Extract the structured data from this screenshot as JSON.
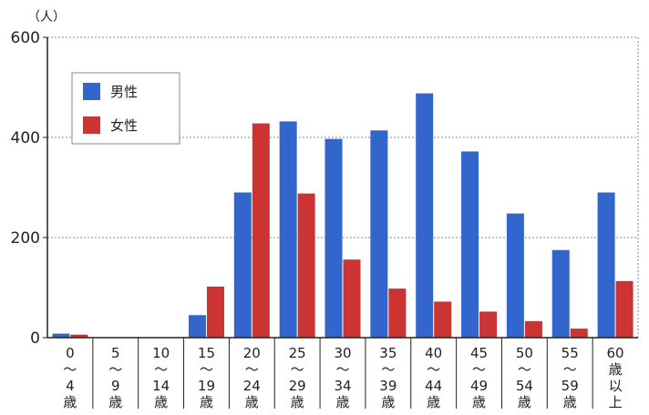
{
  "chart_data": {
    "type": "bar",
    "unit_label": "（人）",
    "categories": [
      [
        "0",
        "〜",
        "4",
        "歳"
      ],
      [
        "5",
        "〜",
        "9",
        "歳"
      ],
      [
        "10",
        "〜",
        "14",
        "歳"
      ],
      [
        "15",
        "〜",
        "19",
        "歳"
      ],
      [
        "20",
        "〜",
        "24",
        "歳"
      ],
      [
        "25",
        "〜",
        "29",
        "歳"
      ],
      [
        "30",
        "〜",
        "34",
        "歳"
      ],
      [
        "35",
        "〜",
        "39",
        "歳"
      ],
      [
        "40",
        "〜",
        "44",
        "歳"
      ],
      [
        "45",
        "〜",
        "49",
        "歳"
      ],
      [
        "50",
        "〜",
        "54",
        "歳"
      ],
      [
        "55",
        "〜",
        "59",
        "歳"
      ],
      [
        "60",
        "歳",
        "以",
        "上"
      ]
    ],
    "series": [
      {
        "name": "男性",
        "color": "#3366cc",
        "values": [
          8,
          0,
          0,
          45,
          290,
          432,
          397,
          414,
          488,
          372,
          248,
          175,
          290
        ]
      },
      {
        "name": "女性",
        "color": "#cc3333",
        "values": [
          6,
          0,
          0,
          102,
          428,
          288,
          156,
          98,
          72,
          52,
          33,
          18,
          113
        ]
      }
    ],
    "ylim": [
      0,
      600
    ],
    "yticks": [
      0,
      200,
      400,
      600
    ],
    "grid": true,
    "legend_position": "top-left"
  }
}
